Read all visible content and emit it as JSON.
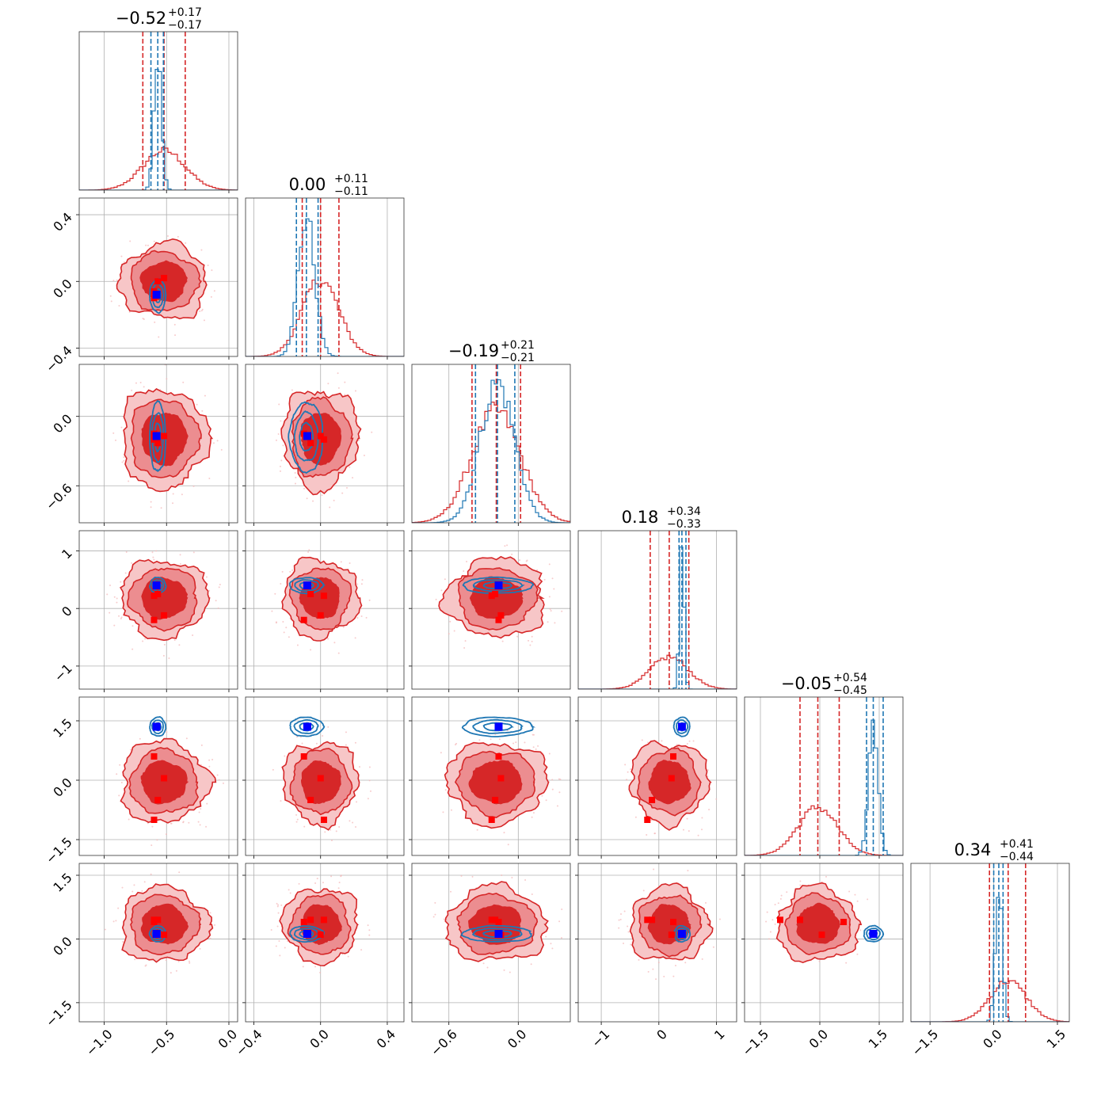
{
  "chart_data": {
    "type": "corner",
    "n_params": 6,
    "series": [
      {
        "name": "",
        "color": "#d62728",
        "style": "filled contours + step histograms"
      },
      {
        "name": "",
        "color": "#1f77b4",
        "style": "line contours + step histograms"
      }
    ],
    "params": [
      {
        "median": -0.52,
        "plus": 0.17,
        "minus": 0.17,
        "title_main": "−0.52",
        "title_plus": "+0.17",
        "title_minus": "−0.17",
        "range": [
          -1.2,
          0.07
        ],
        "ticks": [
          -1.0,
          -0.5,
          0.0
        ],
        "tick_labels": [
          "−1.0",
          "−0.5",
          "0.0"
        ],
        "red": {
          "mean": -0.52,
          "std": 0.17
        },
        "blue": {
          "mean": -0.57,
          "std": 0.03
        },
        "red_quantiles": [
          -0.69,
          -0.52,
          -0.35
        ],
        "blue_quantiles": [
          -0.625,
          -0.57,
          -0.525
        ],
        "red_markers": [
          -0.6,
          -0.57,
          -0.52,
          -0.6
        ],
        "blue_marker": -0.58
      },
      {
        "median": 0.0,
        "plus": 0.11,
        "minus": 0.11,
        "title_main": "0.00",
        "title_plus": "+0.11",
        "title_minus": "−0.11",
        "range": [
          -0.45,
          0.5
        ],
        "ticks": [
          -0.4,
          0.0,
          0.4
        ],
        "tick_labels": [
          "−0.4",
          "0.0",
          "0.4"
        ],
        "red": {
          "mean": 0.0,
          "std": 0.11
        },
        "blue": {
          "mean": -0.085,
          "std": 0.05
        },
        "red_quantiles": [
          -0.11,
          0.0,
          0.11
        ],
        "blue_quantiles": [
          -0.145,
          -0.085,
          -0.015
        ],
        "red_markers": [
          -0.1,
          -0.06,
          0.0,
          0.02
        ],
        "blue_marker": -0.08
      },
      {
        "median": -0.19,
        "plus": 0.21,
        "minus": 0.21,
        "title_main": "−0.19",
        "title_plus": "+0.21",
        "title_minus": "−0.21",
        "range": [
          -0.92,
          0.45
        ],
        "ticks": [
          -0.6,
          0.0
        ],
        "tick_labels": [
          "−0.6",
          "0.0"
        ],
        "red": {
          "mean": -0.19,
          "std": 0.21
        },
        "blue": {
          "mean": -0.18,
          "std": 0.15
        },
        "red_quantiles": [
          -0.4,
          -0.19,
          0.02
        ],
        "blue_quantiles": [
          -0.37,
          -0.18,
          -0.03
        ],
        "red_markers": [
          -0.17,
          -0.2,
          -0.15,
          -0.23
        ],
        "blue_marker": -0.17
      },
      {
        "median": 0.18,
        "plus": 0.34,
        "minus": 0.33,
        "title_main": "0.18",
        "title_plus": "+0.34",
        "title_minus": "−0.33",
        "range": [
          -1.4,
          1.35
        ],
        "ticks": [
          -1,
          0,
          1
        ],
        "tick_labels": [
          "−1",
          "0",
          "1"
        ],
        "red": {
          "mean": 0.18,
          "std": 0.33
        },
        "blue": {
          "mean": 0.4,
          "std": 0.04
        },
        "red_quantiles": [
          -0.15,
          0.18,
          0.52
        ],
        "blue_quantiles": [
          0.35,
          0.4,
          0.47
        ],
        "red_markers": [
          0.25,
          -0.12,
          0.22,
          -0.2
        ],
        "blue_marker": 0.4
      },
      {
        "median": -0.05,
        "plus": 0.54,
        "minus": 0.45,
        "title_main": "−0.05",
        "title_plus": "+0.54",
        "title_minus": "−0.45",
        "range": [
          -1.9,
          2.1
        ],
        "ticks": [
          -1.5,
          0.0,
          1.5
        ],
        "tick_labels": [
          "−1.5",
          "0.0",
          "1.5"
        ],
        "red": {
          "mean": -0.05,
          "std": 0.5
        },
        "blue": {
          "mean": 1.35,
          "std": 0.12
        },
        "red_quantiles": [
          -0.5,
          -0.05,
          0.49
        ],
        "blue_quantiles": [
          1.18,
          1.35,
          1.6
        ],
        "red_markers": [
          0.6,
          -0.5,
          0.05,
          -1.0
        ],
        "blue_marker": 1.35
      },
      {
        "median": 0.34,
        "plus": 0.41,
        "minus": 0.44,
        "title_main": "0.34",
        "title_plus": "+0.41",
        "title_minus": "−0.44",
        "range": [
          -1.95,
          1.78
        ],
        "ticks": [
          -1.5,
          0.0,
          1.5
        ],
        "tick_labels": [
          "−1.5",
          "0.0",
          "1.5"
        ],
        "red": {
          "mean": 0.34,
          "std": 0.43
        },
        "blue": {
          "mean": 0.12,
          "std": 0.08
        },
        "red_quantiles": [
          -0.1,
          0.34,
          0.75
        ],
        "blue_quantiles": [
          0.0,
          0.12,
          0.22
        ],
        "red_markers": [
          0.45,
          0.4,
          0.45,
          0.1
        ],
        "blue_marker": 0.12
      }
    ],
    "grid": true,
    "legend": "none"
  }
}
